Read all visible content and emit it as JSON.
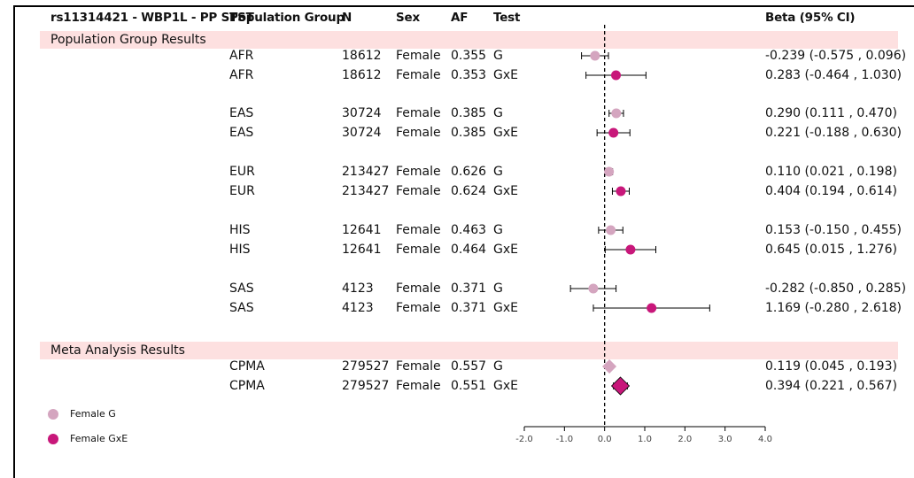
{
  "header": {
    "title": "rs11314421 - WBP1L - PP STST",
    "col_pop": "Population Group",
    "col_n": "N",
    "col_sex": "Sex",
    "col_af": "AF",
    "col_test": "Test",
    "col_beta": "Beta (95% CI)"
  },
  "sections": {
    "population": "Population Group Results",
    "meta": "Meta Analysis Results"
  },
  "rows": [
    {
      "pop": "AFR",
      "n": "18612",
      "sex": "Female",
      "af": "0.355",
      "test": "G",
      "beta": "-0.239 (-0.575 , 0.096)"
    },
    {
      "pop": "AFR",
      "n": "18612",
      "sex": "Female",
      "af": "0.353",
      "test": "GxE",
      "beta": "0.283 (-0.464 , 1.030)"
    },
    {
      "pop": "EAS",
      "n": "30724",
      "sex": "Female",
      "af": "0.385",
      "test": "G",
      "beta": "0.290 (0.111 , 0.470)"
    },
    {
      "pop": "EAS",
      "n": "30724",
      "sex": "Female",
      "af": "0.385",
      "test": "GxE",
      "beta": "0.221 (-0.188 , 0.630)"
    },
    {
      "pop": "EUR",
      "n": "213427",
      "sex": "Female",
      "af": "0.626",
      "test": "G",
      "beta": "0.110 (0.021 , 0.198)"
    },
    {
      "pop": "EUR",
      "n": "213427",
      "sex": "Female",
      "af": "0.624",
      "test": "GxE",
      "beta": "0.404 (0.194 , 0.614)"
    },
    {
      "pop": "HIS",
      "n": "12641",
      "sex": "Female",
      "af": "0.463",
      "test": "G",
      "beta": "0.153 (-0.150 , 0.455)"
    },
    {
      "pop": "HIS",
      "n": "12641",
      "sex": "Female",
      "af": "0.464",
      "test": "GxE",
      "beta": "0.645 (0.015 , 1.276)"
    },
    {
      "pop": "SAS",
      "n": "4123",
      "sex": "Female",
      "af": "0.371",
      "test": "G",
      "beta": "-0.282 (-0.850 , 0.285)"
    },
    {
      "pop": "SAS",
      "n": "4123",
      "sex": "Female",
      "af": "0.371",
      "test": "GxE",
      "beta": "1.169 (-0.280 , 2.618)"
    },
    {
      "pop": "CPMA",
      "n": "279527",
      "sex": "Female",
      "af": "0.557",
      "test": "G",
      "beta": "0.119 (0.045 , 0.193)"
    },
    {
      "pop": "CPMA",
      "n": "279527",
      "sex": "Female",
      "af": "0.551",
      "test": "GxE",
      "beta": "0.394 (0.221 , 0.567)"
    }
  ],
  "legend": [
    {
      "label": "Female G",
      "color": "#d4a5bf"
    },
    {
      "label": "Female GxE",
      "color": "#c8177a"
    }
  ],
  "chart_data": {
    "type": "scatter",
    "title": "",
    "xlabel": "",
    "ylabel": "",
    "xlim": [
      -2.0,
      4.0
    ],
    "x_ticks": [
      "-2.0",
      "-1.0",
      "0.0",
      "1.0",
      "2.0",
      "3.0",
      "4.0"
    ],
    "reference_line": 0.0,
    "colors": {
      "G": "#d4a5bf",
      "GxE": "#c8177a"
    },
    "series": [
      {
        "name": "Female G",
        "points": [
          {
            "row": "AFR",
            "beta": -0.239,
            "lo": -0.575,
            "hi": 0.096,
            "shape": "circle"
          },
          {
            "row": "EAS",
            "beta": 0.29,
            "lo": 0.111,
            "hi": 0.47,
            "shape": "circle"
          },
          {
            "row": "EUR",
            "beta": 0.11,
            "lo": 0.021,
            "hi": 0.198,
            "shape": "circle"
          },
          {
            "row": "HIS",
            "beta": 0.153,
            "lo": -0.15,
            "hi": 0.455,
            "shape": "circle"
          },
          {
            "row": "SAS",
            "beta": -0.282,
            "lo": -0.85,
            "hi": 0.285,
            "shape": "circle"
          },
          {
            "row": "CPMA",
            "beta": 0.119,
            "lo": 0.045,
            "hi": 0.193,
            "shape": "diamond"
          }
        ]
      },
      {
        "name": "Female GxE",
        "points": [
          {
            "row": "AFR",
            "beta": 0.283,
            "lo": -0.464,
            "hi": 1.03,
            "shape": "circle"
          },
          {
            "row": "EAS",
            "beta": 0.221,
            "lo": -0.188,
            "hi": 0.63,
            "shape": "circle"
          },
          {
            "row": "EUR",
            "beta": 0.404,
            "lo": 0.194,
            "hi": 0.614,
            "shape": "circle"
          },
          {
            "row": "HIS",
            "beta": 0.645,
            "lo": 0.015,
            "hi": 1.276,
            "shape": "circle"
          },
          {
            "row": "SAS",
            "beta": 1.169,
            "lo": -0.28,
            "hi": 2.618,
            "shape": "circle"
          },
          {
            "row": "CPMA",
            "beta": 0.394,
            "lo": 0.221,
            "hi": 0.567,
            "shape": "diamond"
          }
        ]
      }
    ]
  }
}
